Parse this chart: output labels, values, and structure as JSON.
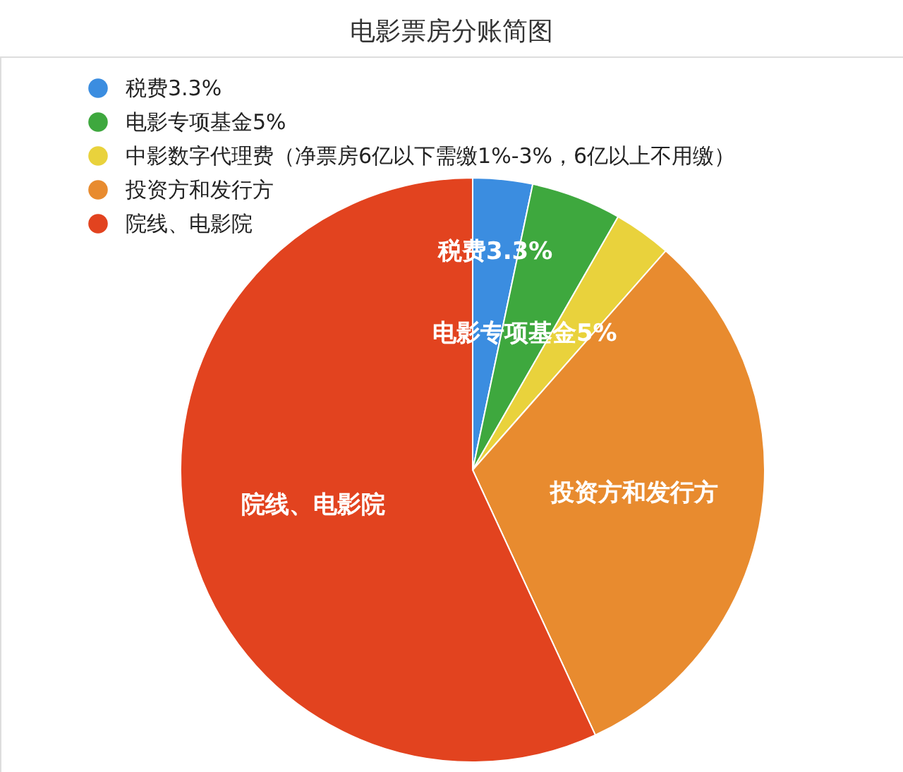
{
  "chart_data": {
    "type": "pie",
    "title": "电影票房分账简图",
    "categories": [
      "税费3.3%",
      "电影专项基金5%",
      "中影数字代理费（净票房6亿以下需缴1%-3%，6亿以上不用缴）",
      "投资方和发行方",
      "院线、电影院"
    ],
    "values": [
      3.3,
      5,
      3.2,
      31.6,
      56.9
    ],
    "colors": [
      "#3b8de0",
      "#3ea83e",
      "#e9d23c",
      "#e88b2f",
      "#e2431f"
    ],
    "value_labels": [
      "税费3.3%",
      "电影专项基金5%",
      null,
      "投资方和发行方",
      "院线、电影院"
    ],
    "legend": "top left"
  }
}
